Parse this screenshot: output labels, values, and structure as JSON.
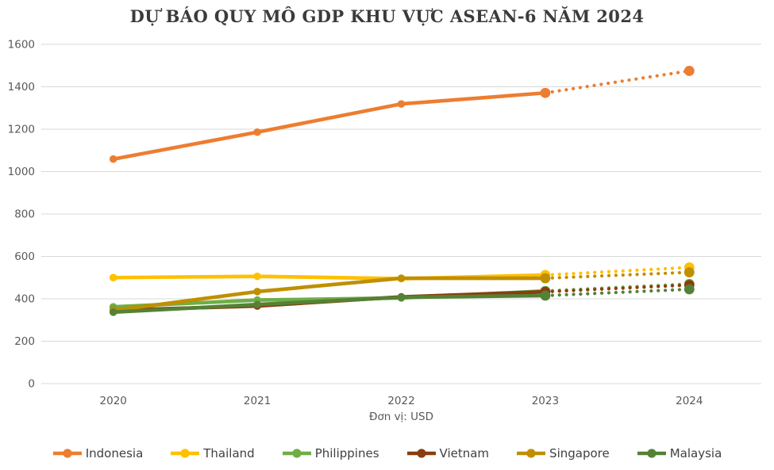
{
  "title": "DỰ BÁO QUY MÔ GDP KHU VỰC ASEAN-6 NĂM 2024",
  "axis_note": "Đơn vị: USD",
  "colors": {
    "gridline": "#D9D9D9",
    "tick_label": "#595959",
    "legend_label": "#404040",
    "title": "#3B3B3B"
  },
  "chart_data": {
    "type": "line",
    "title": "DỰ BÁO QUY MÔ GDP KHU VỰC ASEAN-6 NĂM 2024",
    "xlabel": "Đơn vị: USD",
    "ylabel": "",
    "categories": [
      "2020",
      "2021",
      "2022",
      "2023",
      "2024"
    ],
    "series": [
      {
        "name": "Indonesia",
        "color": "#ED7D31",
        "values": [
          1059,
          1186,
          1319,
          1371,
          1475
        ],
        "forecast_from_index": 3
      },
      {
        "name": "Thailand",
        "color": "#FFC000",
        "values": [
          500,
          506,
          495,
          512,
          548
        ],
        "forecast_from_index": 3
      },
      {
        "name": "Philippines",
        "color": "#70AD47",
        "values": [
          362,
          394,
          404,
          437,
          470
        ],
        "forecast_from_index": 3
      },
      {
        "name": "Vietnam",
        "color": "#8B3D0E",
        "values": [
          346,
          366,
          409,
          433,
          465
        ],
        "forecast_from_index": 3
      },
      {
        "name": "Singapore",
        "color": "#BF8F00",
        "values": [
          345,
          434,
          497,
          497,
          525
        ],
        "forecast_from_index": 3
      },
      {
        "name": "Malaysia",
        "color": "#548235",
        "values": [
          337,
          373,
          407,
          415,
          445
        ],
        "forecast_from_index": 3
      }
    ],
    "ylim": [
      0,
      1600
    ],
    "yticks": [
      0,
      200,
      400,
      600,
      800,
      1000,
      1200,
      1400,
      1600
    ],
    "grid": true,
    "legend_position": "bottom",
    "forecast_style": "dotted segment between 2023 and 2024"
  }
}
